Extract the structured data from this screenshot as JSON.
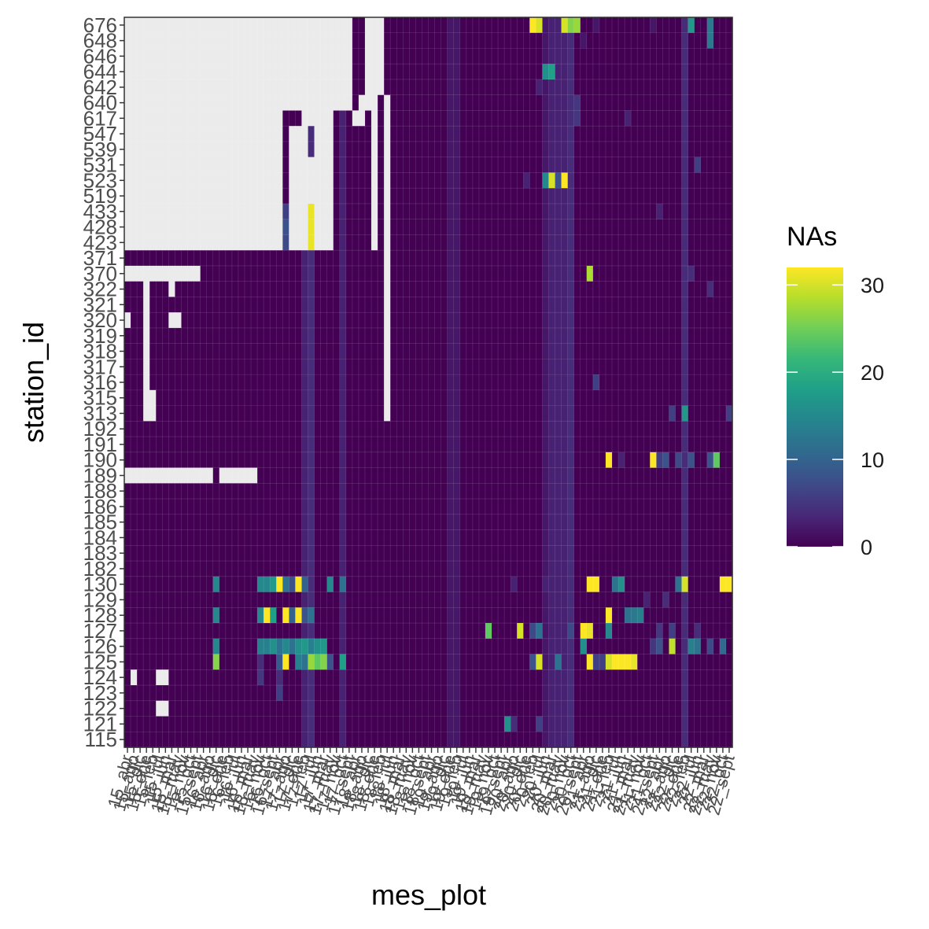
{
  "chart_data": {
    "type": "heatmap",
    "xlabel": "mes_plot",
    "ylabel": "station_id",
    "legend": {
      "title": "NAs",
      "ticks": [
        0,
        10,
        20,
        30
      ],
      "min": 0,
      "max": 32,
      "placement": "right"
    },
    "colors": {
      "na": "#ebebeb",
      "panel_bg": "#ffffff",
      "border": "#333333",
      "palette": [
        "#440154",
        "#482878",
        "#3e4a89",
        "#31688e",
        "#26828e",
        "#1f9e89",
        "#35b779",
        "#6ece58",
        "#b5de2b",
        "#fde725"
      ]
    },
    "y_categories": [
      "676",
      "648",
      "646",
      "644",
      "642",
      "640",
      "617",
      "547",
      "539",
      "531",
      "523",
      "519",
      "433",
      "428",
      "423",
      "371",
      "370",
      "322",
      "321",
      "320",
      "319",
      "318",
      "317",
      "316",
      "315",
      "313",
      "192",
      "191",
      "190",
      "189",
      "188",
      "186",
      "185",
      "184",
      "183",
      "182",
      "130",
      "129",
      "128",
      "127",
      "126",
      "125",
      "124",
      "123",
      "122",
      "121",
      "115"
    ],
    "x_categories": [
      "15_abr",
      "15_ago",
      "15_dic",
      "15_ene",
      "15_feb",
      "15_jul",
      "15_jun",
      "15_mar",
      "15_may",
      "15_nov",
      "15_oct",
      "15_sept",
      "16_abr",
      "16_ago",
      "16_dic",
      "16_ene",
      "16_feb",
      "16_jul",
      "16_jun",
      "16_mar",
      "16_may",
      "16_nov",
      "16_oct",
      "16_sept",
      "17_abr",
      "17_ago",
      "17_dic",
      "17_ene",
      "17_feb",
      "17_jul",
      "17_jun",
      "17_mar",
      "17_may",
      "17_nov",
      "17_oct",
      "17_sept",
      "18_abr",
      "18_ago",
      "18_dic",
      "18_ene",
      "18_feb",
      "18_jul",
      "18_jun",
      "18_mar",
      "18_may",
      "18_nov",
      "18_oct",
      "18_sept",
      "19_abr",
      "19_ago",
      "19_dic",
      "19_ene",
      "19_feb",
      "19_jul",
      "19_jun",
      "19_mar",
      "19_may",
      "19_nov",
      "19_oct",
      "19_sept",
      "20_abr",
      "20_ago",
      "20_dic",
      "20_ene",
      "20_feb",
      "20_jul",
      "20_jun",
      "20_mar",
      "20_may",
      "20_nov",
      "20_oct",
      "20_sept",
      "21_abr",
      "21_ago",
      "21_dic",
      "21_ene",
      "21_feb",
      "21_jul",
      "21_jun",
      "21_mar",
      "21_may",
      "21_nov",
      "21_oct",
      "21_sept",
      "22_abr",
      "22_ago",
      "22_dic",
      "22_ene",
      "22_feb",
      "22_jul",
      "22_jun",
      "22_mar",
      "22_may",
      "22_nov",
      "22_oct",
      "22_sept"
    ],
    "missing_ranges": [
      {
        "y": "676",
        "x": [
          [
            0,
            35
          ],
          [
            38,
            40
          ]
        ]
      },
      {
        "y": "648",
        "x": [
          [
            0,
            35
          ],
          [
            38,
            40
          ]
        ]
      },
      {
        "y": "646",
        "x": [
          [
            0,
            35
          ],
          [
            38,
            40
          ]
        ]
      },
      {
        "y": "644",
        "x": [
          [
            0,
            35
          ],
          [
            38,
            40
          ]
        ]
      },
      {
        "y": "642",
        "x": [
          [
            0,
            35
          ],
          [
            38,
            40
          ]
        ]
      },
      {
        "y": "640",
        "x": [
          [
            0,
            35
          ],
          [
            37,
            39
          ],
          [
            41,
            41
          ]
        ]
      },
      {
        "y": "617",
        "x": [
          [
            0,
            24
          ],
          [
            28,
            32
          ],
          [
            36,
            37
          ],
          [
            39,
            39
          ],
          [
            41,
            41
          ]
        ]
      },
      {
        "y": "547",
        "x": [
          [
            0,
            24
          ],
          [
            26,
            28
          ],
          [
            30,
            32
          ],
          [
            39,
            39
          ],
          [
            41,
            41
          ]
        ]
      },
      {
        "y": "539",
        "x": [
          [
            0,
            24
          ],
          [
            26,
            28
          ],
          [
            30,
            32
          ],
          [
            39,
            39
          ],
          [
            41,
            41
          ]
        ]
      },
      {
        "y": "531",
        "x": [
          [
            0,
            24
          ],
          [
            26,
            32
          ],
          [
            39,
            39
          ],
          [
            41,
            41
          ]
        ]
      },
      {
        "y": "523",
        "x": [
          [
            0,
            24
          ],
          [
            26,
            32
          ],
          [
            39,
            39
          ],
          [
            41,
            41
          ]
        ]
      },
      {
        "y": "519",
        "x": [
          [
            0,
            24
          ],
          [
            26,
            32
          ],
          [
            39,
            39
          ],
          [
            41,
            41
          ]
        ]
      },
      {
        "y": "433",
        "x": [
          [
            0,
            24
          ],
          [
            26,
            28
          ],
          [
            30,
            32
          ],
          [
            39,
            39
          ],
          [
            41,
            41
          ]
        ]
      },
      {
        "y": "428",
        "x": [
          [
            0,
            24
          ],
          [
            26,
            28
          ],
          [
            30,
            32
          ],
          [
            39,
            39
          ],
          [
            41,
            41
          ]
        ]
      },
      {
        "y": "423",
        "x": [
          [
            0,
            24
          ],
          [
            26,
            28
          ],
          [
            30,
            32
          ],
          [
            39,
            39
          ],
          [
            41,
            41
          ]
        ]
      },
      {
        "y": "371",
        "x": [
          [
            41,
            41
          ]
        ]
      },
      {
        "y": "370",
        "x": [
          [
            0,
            11
          ],
          [
            41,
            41
          ]
        ]
      },
      {
        "y": "322",
        "x": [
          [
            3,
            3
          ],
          [
            7,
            7
          ],
          [
            41,
            41
          ]
        ]
      },
      {
        "y": "321",
        "x": [
          [
            3,
            3
          ],
          [
            41,
            41
          ]
        ]
      },
      {
        "y": "320",
        "x": [
          [
            0,
            0
          ],
          [
            3,
            3
          ],
          [
            7,
            8
          ],
          [
            41,
            41
          ]
        ]
      },
      {
        "y": "319",
        "x": [
          [
            3,
            3
          ],
          [
            41,
            41
          ]
        ]
      },
      {
        "y": "318",
        "x": [
          [
            3,
            3
          ],
          [
            41,
            41
          ]
        ]
      },
      {
        "y": "317",
        "x": [
          [
            3,
            3
          ],
          [
            41,
            41
          ]
        ]
      },
      {
        "y": "316",
        "x": [
          [
            3,
            3
          ],
          [
            41,
            41
          ]
        ]
      },
      {
        "y": "315",
        "x": [
          [
            3,
            4
          ],
          [
            41,
            41
          ]
        ]
      },
      {
        "y": "313",
        "x": [
          [
            3,
            4
          ],
          [
            41,
            41
          ]
        ]
      },
      {
        "y": "189",
        "x": [
          [
            0,
            13
          ],
          [
            15,
            20
          ]
        ]
      },
      {
        "y": "124",
        "x": [
          [
            1,
            1
          ],
          [
            5,
            6
          ]
        ]
      },
      {
        "y": "122",
        "x": [
          [
            5,
            6
          ]
        ]
      }
    ],
    "value_cells": [
      {
        "y": "676",
        "x": 64,
        "v": 32
      },
      {
        "y": "676",
        "x": 65,
        "v": 30
      },
      {
        "y": "676",
        "x": 69,
        "v": 30
      },
      {
        "y": "676",
        "x": 70,
        "v": 26
      },
      {
        "y": "676",
        "x": 71,
        "v": 27
      },
      {
        "y": "676",
        "x": 89,
        "v": 17
      },
      {
        "y": "676",
        "x": 92,
        "v": 13
      },
      {
        "y": "676",
        "x": 74,
        "v": 2
      },
      {
        "y": "676",
        "x": 83,
        "v": 2
      },
      {
        "y": "648",
        "x": 92,
        "v": 13
      },
      {
        "y": "648",
        "x": 72,
        "v": 2
      },
      {
        "y": "644",
        "x": 66,
        "v": 16
      },
      {
        "y": "644",
        "x": 67,
        "v": 18
      },
      {
        "y": "642",
        "x": 65,
        "v": 3
      },
      {
        "y": "640",
        "x": 71,
        "v": 5
      },
      {
        "y": "617",
        "x": 71,
        "v": 5
      },
      {
        "y": "617",
        "x": 79,
        "v": 3
      },
      {
        "y": "531",
        "x": 90,
        "v": 6
      },
      {
        "y": "523",
        "x": 66,
        "v": 15
      },
      {
        "y": "523",
        "x": 67,
        "v": 30
      },
      {
        "y": "523",
        "x": 68,
        "v": 8
      },
      {
        "y": "523",
        "x": 69,
        "v": 32
      },
      {
        "y": "523",
        "x": 63,
        "v": 3
      },
      {
        "y": "433",
        "x": 25,
        "v": 6
      },
      {
        "y": "433",
        "x": 29,
        "v": 31
      },
      {
        "y": "433",
        "x": 84,
        "v": 3
      },
      {
        "y": "428",
        "x": 25,
        "v": 8
      },
      {
        "y": "428",
        "x": 29,
        "v": 31
      },
      {
        "y": "423",
        "x": 25,
        "v": 7
      },
      {
        "y": "423",
        "x": 29,
        "v": 31
      },
      {
        "y": "370",
        "x": 73,
        "v": 28
      },
      {
        "y": "370",
        "x": 89,
        "v": 4
      },
      {
        "y": "322",
        "x": 88,
        "v": 4
      },
      {
        "y": "322",
        "x": 92,
        "v": 4
      },
      {
        "y": "316",
        "x": 74,
        "v": 6
      },
      {
        "y": "313",
        "x": 86,
        "v": 6
      },
      {
        "y": "313",
        "x": 88,
        "v": 17
      },
      {
        "y": "313",
        "x": 95,
        "v": 6
      },
      {
        "y": "190",
        "x": 76,
        "v": 32
      },
      {
        "y": "190",
        "x": 83,
        "v": 32
      },
      {
        "y": "190",
        "x": 84,
        "v": 6
      },
      {
        "y": "190",
        "x": 85,
        "v": 8
      },
      {
        "y": "190",
        "x": 87,
        "v": 7
      },
      {
        "y": "190",
        "x": 89,
        "v": 8
      },
      {
        "y": "190",
        "x": 92,
        "v": 8
      },
      {
        "y": "190",
        "x": 93,
        "v": 24
      },
      {
        "y": "190",
        "x": 78,
        "v": 3
      },
      {
        "y": "130",
        "x": 14,
        "v": 15
      },
      {
        "y": "130",
        "x": 21,
        "v": 15
      },
      {
        "y": "130",
        "x": 22,
        "v": 15
      },
      {
        "y": "130",
        "x": 23,
        "v": 17
      },
      {
        "y": "130",
        "x": 24,
        "v": 32
      },
      {
        "y": "130",
        "x": 25,
        "v": 12
      },
      {
        "y": "130",
        "x": 26,
        "v": 8
      },
      {
        "y": "130",
        "x": 27,
        "v": 32
      },
      {
        "y": "130",
        "x": 28,
        "v": 10
      },
      {
        "y": "130",
        "x": 32,
        "v": 15
      },
      {
        "y": "130",
        "x": 34,
        "v": 12
      },
      {
        "y": "130",
        "x": 73,
        "v": 32
      },
      {
        "y": "130",
        "x": 74,
        "v": 32
      },
      {
        "y": "130",
        "x": 77,
        "v": 12
      },
      {
        "y": "130",
        "x": 78,
        "v": 16
      },
      {
        "y": "130",
        "x": 87,
        "v": 12
      },
      {
        "y": "130",
        "x": 88,
        "v": 30
      },
      {
        "y": "130",
        "x": 94,
        "v": 32
      },
      {
        "y": "130",
        "x": 95,
        "v": 32
      },
      {
        "y": "130",
        "x": 61,
        "v": 3
      },
      {
        "y": "130",
        "x": 66,
        "v": 3
      },
      {
        "y": "129",
        "x": 85,
        "v": 4
      },
      {
        "y": "129",
        "x": 82,
        "v": 3
      },
      {
        "y": "128",
        "x": 14,
        "v": 15
      },
      {
        "y": "128",
        "x": 21,
        "v": 15
      },
      {
        "y": "128",
        "x": 22,
        "v": 32
      },
      {
        "y": "128",
        "x": 23,
        "v": 18
      },
      {
        "y": "128",
        "x": 25,
        "v": 32
      },
      {
        "y": "128",
        "x": 26,
        "v": 10
      },
      {
        "y": "128",
        "x": 27,
        "v": 32
      },
      {
        "y": "128",
        "x": 28,
        "v": 8
      },
      {
        "y": "128",
        "x": 29,
        "v": 12
      },
      {
        "y": "128",
        "x": 76,
        "v": 32
      },
      {
        "y": "128",
        "x": 79,
        "v": 12
      },
      {
        "y": "128",
        "x": 80,
        "v": 13
      },
      {
        "y": "128",
        "x": 81,
        "v": 14
      },
      {
        "y": "127",
        "x": 57,
        "v": 24
      },
      {
        "y": "127",
        "x": 62,
        "v": 30
      },
      {
        "y": "127",
        "x": 64,
        "v": 7
      },
      {
        "y": "127",
        "x": 65,
        "v": 12
      },
      {
        "y": "127",
        "x": 70,
        "v": 7
      },
      {
        "y": "127",
        "x": 72,
        "v": 32
      },
      {
        "y": "127",
        "x": 73,
        "v": 31
      },
      {
        "y": "127",
        "x": 76,
        "v": 15
      },
      {
        "y": "127",
        "x": 84,
        "v": 5
      },
      {
        "y": "127",
        "x": 86,
        "v": 6
      },
      {
        "y": "127",
        "x": 90,
        "v": 4
      },
      {
        "y": "126",
        "x": 14,
        "v": 15
      },
      {
        "y": "126",
        "x": 21,
        "v": 14
      },
      {
        "y": "126",
        "x": 22,
        "v": 14
      },
      {
        "y": "126",
        "x": 23,
        "v": 16
      },
      {
        "y": "126",
        "x": 24,
        "v": 12
      },
      {
        "y": "126",
        "x": 25,
        "v": 15
      },
      {
        "y": "126",
        "x": 26,
        "v": 12
      },
      {
        "y": "126",
        "x": 27,
        "v": 16
      },
      {
        "y": "126",
        "x": 28,
        "v": 17
      },
      {
        "y": "126",
        "x": 29,
        "v": 14
      },
      {
        "y": "126",
        "x": 30,
        "v": 16
      },
      {
        "y": "126",
        "x": 31,
        "v": 17
      },
      {
        "y": "126",
        "x": 72,
        "v": 16
      },
      {
        "y": "126",
        "x": 84,
        "v": 8
      },
      {
        "y": "126",
        "x": 86,
        "v": 29
      },
      {
        "y": "126",
        "x": 89,
        "v": 14
      },
      {
        "y": "126",
        "x": 90,
        "v": 12
      },
      {
        "y": "126",
        "x": 92,
        "v": 7
      },
      {
        "y": "126",
        "x": 94,
        "v": 11
      },
      {
        "y": "126",
        "x": 83,
        "v": 5
      },
      {
        "y": "125",
        "x": 14,
        "v": 26
      },
      {
        "y": "125",
        "x": 24,
        "v": 9
      },
      {
        "y": "125",
        "x": 25,
        "v": 32
      },
      {
        "y": "125",
        "x": 27,
        "v": 14
      },
      {
        "y": "125",
        "x": 28,
        "v": 12
      },
      {
        "y": "125",
        "x": 29,
        "v": 27
      },
      {
        "y": "125",
        "x": 30,
        "v": 24
      },
      {
        "y": "125",
        "x": 31,
        "v": 26
      },
      {
        "y": "125",
        "x": 32,
        "v": 8
      },
      {
        "y": "125",
        "x": 34,
        "v": 18
      },
      {
        "y": "125",
        "x": 64,
        "v": 8
      },
      {
        "y": "125",
        "x": 65,
        "v": 30
      },
      {
        "y": "125",
        "x": 68,
        "v": 12
      },
      {
        "y": "125",
        "x": 73,
        "v": 32
      },
      {
        "y": "125",
        "x": 74,
        "v": 6
      },
      {
        "y": "125",
        "x": 75,
        "v": 6
      },
      {
        "y": "125",
        "x": 76,
        "v": 30
      },
      {
        "y": "125",
        "x": 77,
        "v": 32
      },
      {
        "y": "125",
        "x": 78,
        "v": 32
      },
      {
        "y": "125",
        "x": 79,
        "v": 32
      },
      {
        "y": "125",
        "x": 80,
        "v": 31
      },
      {
        "y": "125",
        "x": 21,
        "v": 4
      },
      {
        "y": "124",
        "x": 21,
        "v": 5
      },
      {
        "y": "124",
        "x": 24,
        "v": 4
      },
      {
        "y": "123",
        "x": 24,
        "v": 6
      },
      {
        "y": "121",
        "x": 60,
        "v": 16
      },
      {
        "y": "121",
        "x": 61,
        "v": 4
      },
      {
        "y": "121",
        "x": 65,
        "v": 6
      }
    ],
    "column_streaks": [
      {
        "x": 28,
        "v": 3
      },
      {
        "x": 29,
        "v": 4
      },
      {
        "x": 34,
        "v": 3
      },
      {
        "x": 51,
        "v": 2
      },
      {
        "x": 52,
        "v": 2
      },
      {
        "x": 66,
        "v": 2
      },
      {
        "x": 67,
        "v": 3
      },
      {
        "x": 68,
        "v": 3
      },
      {
        "x": 69,
        "v": 3
      },
      {
        "x": 70,
        "v": 4
      },
      {
        "x": 88,
        "v": 4
      }
    ]
  }
}
